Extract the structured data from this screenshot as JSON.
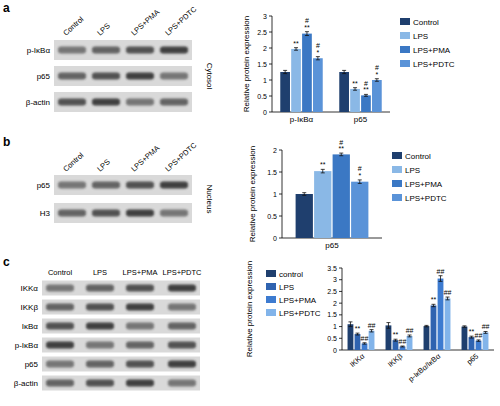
{
  "chart_data": [
    {
      "type": "bar",
      "ylabel": "Relative protein expression",
      "categories": [
        "p-IκBα",
        "p65"
      ],
      "series": [
        {
          "name": "Control",
          "color": "#1f3f6e",
          "values": [
            1.25,
            1.25
          ],
          "errors": [
            0.05,
            0.05
          ],
          "significance": [
            null,
            null
          ]
        },
        {
          "name": "LPS",
          "color": "#8ab8e6",
          "values": [
            1.97,
            0.72
          ],
          "errors": [
            0.04,
            0.04
          ],
          "significance": [
            [
              "**"
            ],
            [
              "**"
            ]
          ]
        },
        {
          "name": "LPS+PMA",
          "color": "#3b78c4",
          "values": [
            2.45,
            0.52
          ],
          "errors": [
            0.06,
            0.03
          ],
          "significance": [
            [
              "#",
              "**"
            ],
            [
              "#",
              "**"
            ]
          ]
        },
        {
          "name": "LPS+PDTC",
          "color": "#5a93d8",
          "values": [
            1.68,
            1.0
          ],
          "errors": [
            0.05,
            0.04
          ],
          "significance": [
            [
              "#",
              "*"
            ],
            [
              "#",
              "*"
            ]
          ]
        }
      ],
      "ylim": [
        0,
        3
      ],
      "yticks": [
        0,
        0.5,
        1,
        1.5,
        2,
        2.5,
        3
      ],
      "grid": false,
      "legend": "right"
    },
    {
      "type": "bar",
      "ylabel": "Relative protein expression",
      "categories": [
        "p65"
      ],
      "series": [
        {
          "name": "Control",
          "color": "#1f3f6e",
          "values": [
            1.0
          ],
          "errors": [
            0.03
          ],
          "significance": [
            null
          ]
        },
        {
          "name": "LPS",
          "color": "#8ab8e6",
          "values": [
            1.52
          ],
          "errors": [
            0.04
          ],
          "significance": [
            [
              "**"
            ]
          ]
        },
        {
          "name": "LPS+PMA",
          "color": "#3b78c4",
          "values": [
            1.9
          ],
          "errors": [
            0.03
          ],
          "significance": [
            [
              "#",
              "**"
            ]
          ]
        },
        {
          "name": "LPS+PDTC",
          "color": "#5a93d8",
          "values": [
            1.28
          ],
          "errors": [
            0.04
          ],
          "significance": [
            [
              "#",
              "*"
            ]
          ]
        }
      ],
      "ylim": [
        0,
        2
      ],
      "yticks": [
        0,
        0.5,
        1,
        1.5,
        2
      ],
      "grid": false,
      "legend": "right"
    },
    {
      "type": "bar",
      "ylabel": "Relative protein expression",
      "categories": [
        "IKKα",
        "IKKβ",
        "p-IκBα/IκBα",
        "p65"
      ],
      "series": [
        {
          "name": "control",
          "color": "#1f3f6e",
          "values": [
            1.1,
            1.05,
            1.02,
            1.0
          ],
          "errors": [
            0.1,
            0.12,
            0.03,
            0.03
          ],
          "significance": [
            null,
            null,
            null,
            null
          ]
        },
        {
          "name": "LPS",
          "color": "#2f63b0",
          "values": [
            0.68,
            0.42,
            1.9,
            0.55
          ],
          "errors": [
            0.04,
            0.04,
            0.05,
            0.04
          ],
          "significance": [
            [
              "**"
            ],
            [
              "**"
            ],
            [
              "**"
            ],
            [
              "**"
            ]
          ]
        },
        {
          "name": "LPS+PMA",
          "color": "#3d7bd0",
          "values": [
            0.28,
            0.15,
            3.05,
            0.4
          ],
          "errors": [
            0.03,
            0.02,
            0.12,
            0.03
          ],
          "significance": [
            [
              "##"
            ],
            [
              "##"
            ],
            [
              "##"
            ],
            [
              "##"
            ]
          ]
        },
        {
          "name": "LPS+PDTC",
          "color": "#82b4ea",
          "values": [
            0.82,
            0.6,
            2.2,
            0.75
          ],
          "errors": [
            0.05,
            0.04,
            0.06,
            0.04
          ],
          "significance": [
            [
              "##"
            ],
            [
              "##"
            ],
            [
              "##"
            ],
            [
              "##"
            ]
          ]
        }
      ],
      "ylim": [
        0,
        3.5
      ],
      "yticks": [
        0,
        0.5,
        1,
        1.5,
        2,
        2.5,
        3,
        3.5
      ],
      "grid": false,
      "legend": "left"
    }
  ],
  "blots": [
    {
      "panel": "a",
      "lanes": [
        "Control",
        "LPS",
        "LPS+PMA",
        "LPS+PDTC"
      ],
      "rows": [
        "p-IκBα",
        "p65",
        "β-actin"
      ],
      "fraction": "Cytosol"
    },
    {
      "panel": "b",
      "lanes": [
        "Control",
        "LPS",
        "LPS+PMA",
        "LPS+PDTC"
      ],
      "rows": [
        "p65",
        "H3"
      ],
      "fraction": "Nucleus"
    },
    {
      "panel": "c",
      "lanes": [
        "Control",
        "LPS",
        "LPS+PMA",
        "LPS+PDTC"
      ],
      "rows": [
        "IKKα",
        "IKKβ",
        "IκBα",
        "p-IκBα",
        "p65",
        "β-actin"
      ]
    }
  ]
}
